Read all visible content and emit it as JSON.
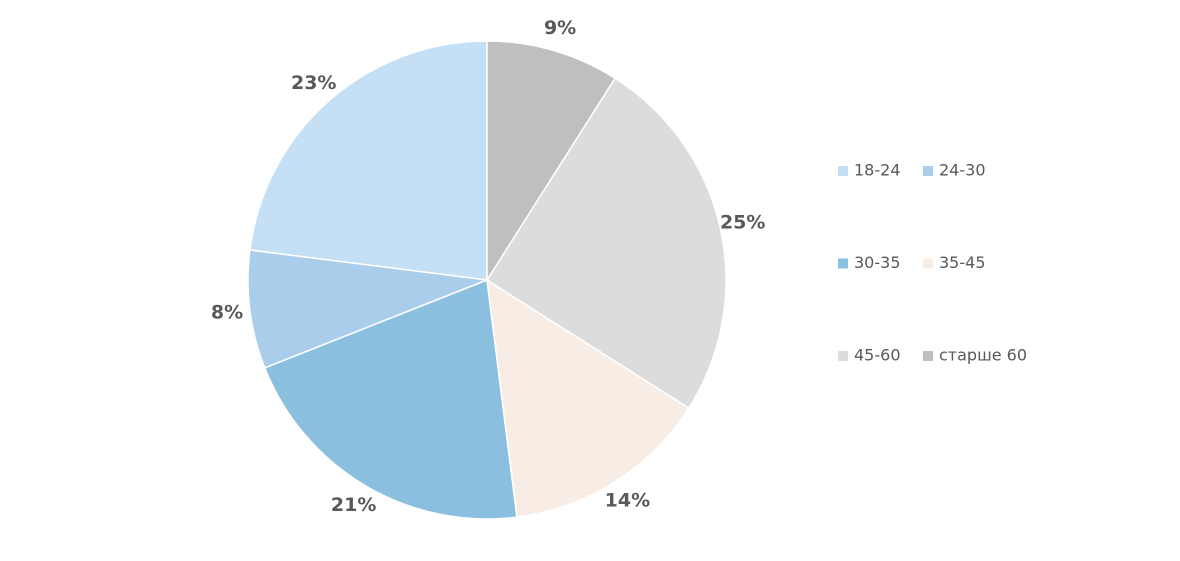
{
  "chart_data": {
    "type": "pie",
    "categories": [
      "18-24",
      "24-30",
      "30-35",
      "35-45",
      "45-60",
      "старше 60"
    ],
    "values": [
      23,
      8,
      21,
      14,
      25,
      9
    ],
    "value_labels": [
      "23%",
      "8%",
      "21%",
      "14%",
      "25%",
      "9%"
    ],
    "colors": [
      "#c5dff5",
      "#abcdec",
      "#8bbfdf",
      "#f7ede4",
      "#dcdcdc",
      "#bfbfbf"
    ],
    "direction": "counterclockwise",
    "legend": "right"
  }
}
